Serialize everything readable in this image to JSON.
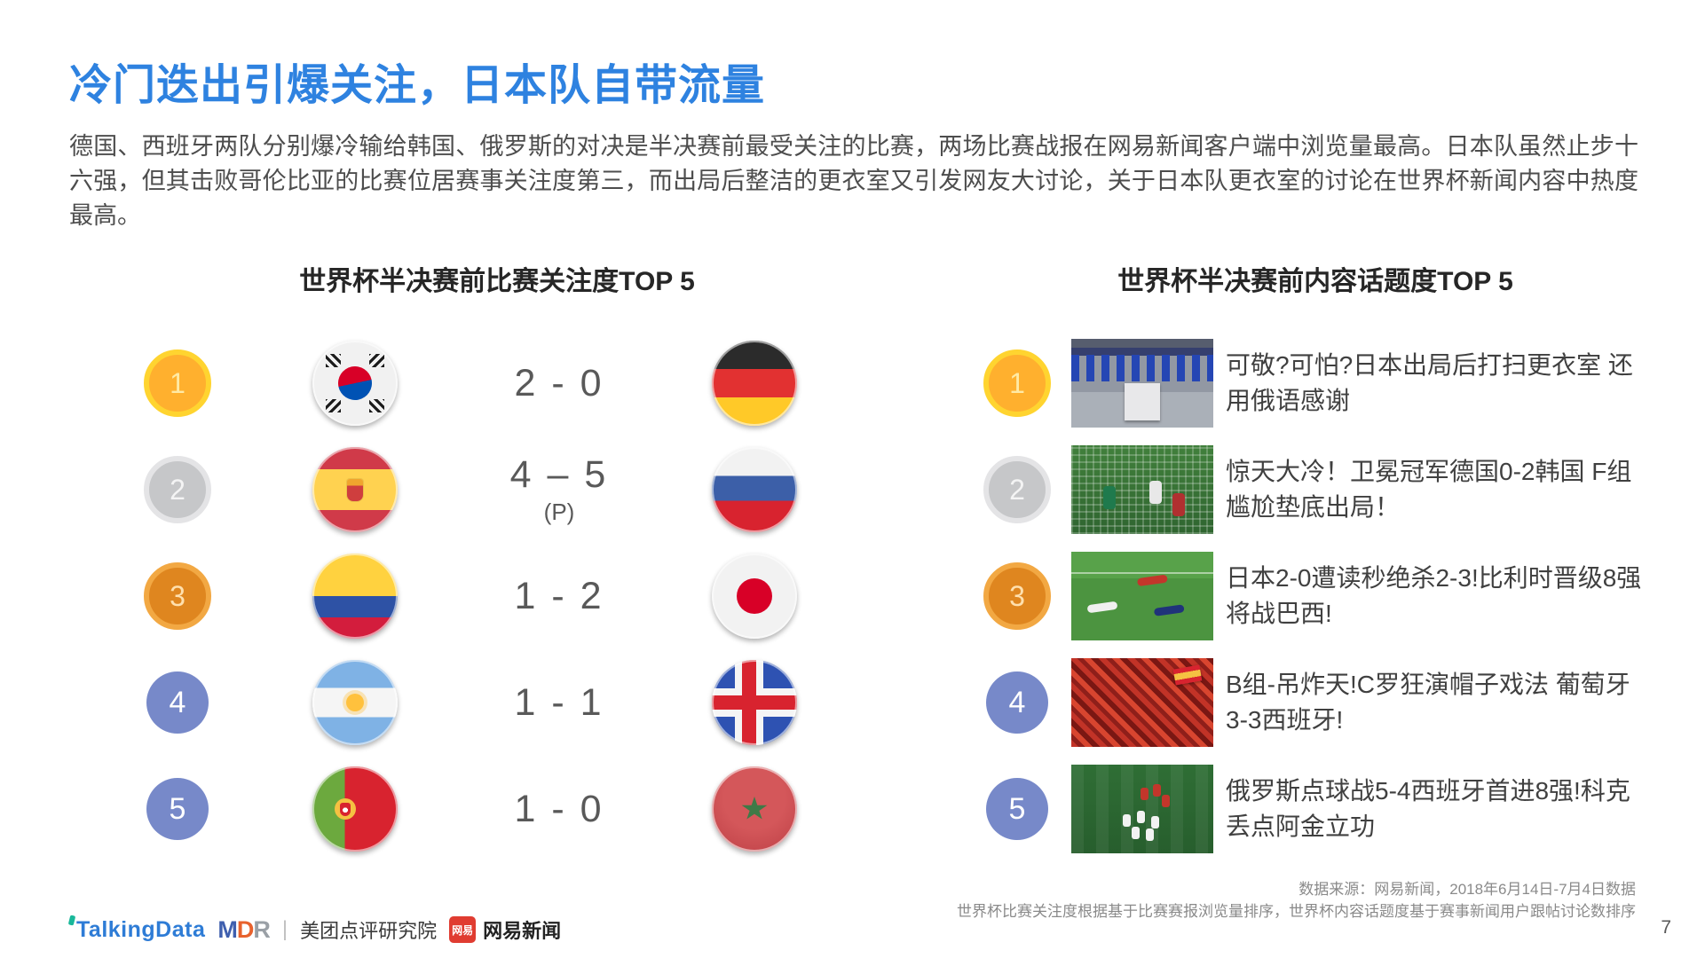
{
  "page": {
    "title": "冷门迭出引爆关注，日本队自带流量",
    "paragraph": "德国、西班牙两队分别爆冷输给韩国、俄罗斯的对决是半决赛前最受关注的比赛，两场比赛战报在网易新闻客户端中浏览量最高。日本队虽然止步十六强，但其击败哥伦比亚的比赛位居赛事关注度第三，而出局后整洁的更衣室又引发网友大讨论，关于日本队更衣室的讨论在世界杯新闻内容中热度最高。",
    "page_number": "7"
  },
  "match_ranking": {
    "title": "世界杯半决赛前比赛关注度TOP 5",
    "rows": [
      {
        "rank": "1",
        "medal": "gold",
        "home_flag": "south-korea",
        "score": "2 - 0",
        "score_note": "",
        "away_flag": "germany"
      },
      {
        "rank": "2",
        "medal": "silver",
        "home_flag": "spain",
        "score": "4 – 5",
        "score_note": "(P)",
        "away_flag": "russia"
      },
      {
        "rank": "3",
        "medal": "bronze",
        "home_flag": "colombia",
        "score": "1 - 2",
        "score_note": "",
        "away_flag": "japan"
      },
      {
        "rank": "4",
        "medal": "plain",
        "home_flag": "argentina",
        "score": "1 - 1",
        "score_note": "",
        "away_flag": "iceland"
      },
      {
        "rank": "5",
        "medal": "plain",
        "home_flag": "portugal",
        "score": "1 - 0",
        "score_note": "",
        "away_flag": "morocco"
      }
    ]
  },
  "topic_ranking": {
    "title": "世界杯半决赛前内容话题度TOP 5",
    "rows": [
      {
        "rank": "1",
        "medal": "gold",
        "thumb": "locker-room",
        "headline": "可敬?可怕?日本出局后打扫更衣室 还用俄语感谢"
      },
      {
        "rank": "2",
        "medal": "silver",
        "thumb": "goal-net",
        "headline": "惊天大冷！卫冕冠军德国0-2韩国 F组尴尬垫底出局！"
      },
      {
        "rank": "3",
        "medal": "bronze",
        "thumb": "fallen-players",
        "headline": "日本2-0遭读秒绝杀2-3!比利时晋级8强将战巴西!"
      },
      {
        "rank": "4",
        "medal": "plain",
        "thumb": "red-crowd",
        "headline": "B组-吊炸天!C罗狂演帽子戏法 葡萄牙3-3西班牙!"
      },
      {
        "rank": "5",
        "medal": "plain",
        "thumb": "celebration",
        "headline": "俄罗斯点球战5-4西班牙首进8强!科克丢点阿金立功"
      }
    ]
  },
  "footer": {
    "source_line1": "数据来源：网易新闻，2018年6月14日-7月4日数据",
    "source_line2": "世界杯比赛关注度根据基于比赛赛报浏览量排序，世界杯内容话题度基于赛事新闻用户跟帖讨论数排序",
    "logos": {
      "talkingdata": "TalkingData",
      "mdr_m": "M",
      "mdr_d": "D",
      "mdr_r": "R",
      "separator": "|",
      "meituan": "美团点评研究院",
      "netease_badge": "网易",
      "netease": "网易新闻"
    }
  },
  "colors": {
    "title_blue": "#2e82e0",
    "body_gray": "#4d4d4d",
    "rank_blue": "#7789c9",
    "ribbon_orange": "#ff5b25"
  }
}
